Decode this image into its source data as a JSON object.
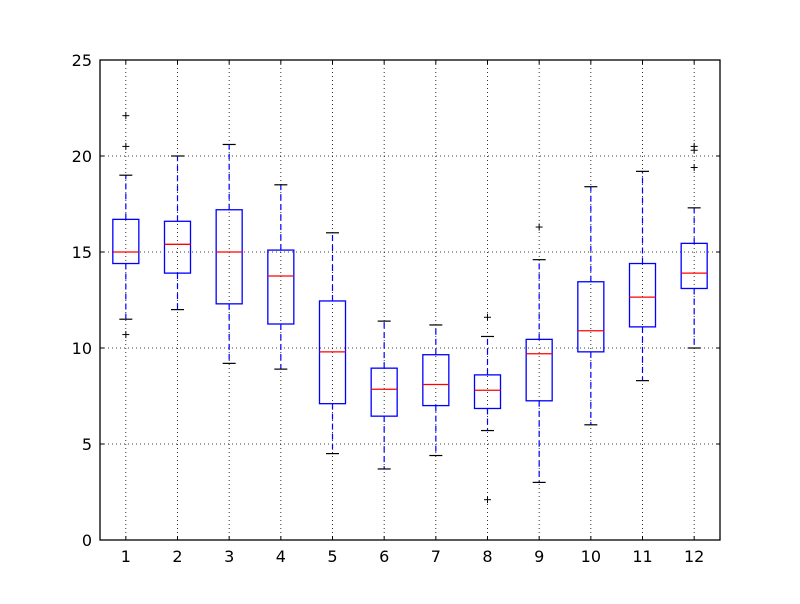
{
  "chart_data": {
    "type": "boxplot",
    "title": "",
    "xlabel": "",
    "ylabel": "",
    "categories": [
      "1",
      "2",
      "3",
      "4",
      "5",
      "6",
      "7",
      "8",
      "9",
      "10",
      "11",
      "12"
    ],
    "ylim": [
      0,
      25
    ],
    "xlim": [
      0.5,
      12.5
    ],
    "yticks": [
      0,
      5,
      10,
      15,
      20,
      25
    ],
    "xticks": [
      1,
      2,
      3,
      4,
      5,
      6,
      7,
      8,
      9,
      10,
      11,
      12
    ],
    "grid": true,
    "legend": null,
    "boxes": [
      {
        "label": "1",
        "whisker_low": 11.5,
        "q1": 14.4,
        "median": 15.0,
        "q3": 16.7,
        "whisker_high": 19.0,
        "outliers": [
          22.1,
          20.5,
          10.7
        ]
      },
      {
        "label": "2",
        "whisker_low": 12.0,
        "q1": 13.9,
        "median": 15.4,
        "q3": 16.6,
        "whisker_high": 20.0,
        "outliers": []
      },
      {
        "label": "3",
        "whisker_low": 9.2,
        "q1": 12.3,
        "median": 15.0,
        "q3": 17.2,
        "whisker_high": 20.6,
        "outliers": []
      },
      {
        "label": "4",
        "whisker_low": 8.9,
        "q1": 11.25,
        "median": 13.75,
        "q3": 15.1,
        "whisker_high": 18.5,
        "outliers": []
      },
      {
        "label": "5",
        "whisker_low": 4.5,
        "q1": 7.1,
        "median": 9.8,
        "q3": 12.45,
        "whisker_high": 16.0,
        "outliers": []
      },
      {
        "label": "6",
        "whisker_low": 3.7,
        "q1": 6.45,
        "median": 7.85,
        "q3": 8.95,
        "whisker_high": 11.4,
        "outliers": []
      },
      {
        "label": "7",
        "whisker_low": 4.4,
        "q1": 7.0,
        "median": 8.1,
        "q3": 9.65,
        "whisker_high": 11.2,
        "outliers": []
      },
      {
        "label": "8",
        "whisker_low": 5.7,
        "q1": 6.85,
        "median": 7.8,
        "q3": 8.6,
        "whisker_high": 10.6,
        "outliers": [
          11.6,
          2.1
        ]
      },
      {
        "label": "9",
        "whisker_low": 3.0,
        "q1": 7.25,
        "median": 9.7,
        "q3": 10.45,
        "whisker_high": 14.6,
        "outliers": [
          16.3
        ]
      },
      {
        "label": "10",
        "whisker_low": 6.0,
        "q1": 9.8,
        "median": 10.9,
        "q3": 13.45,
        "whisker_high": 18.4,
        "outliers": []
      },
      {
        "label": "11",
        "whisker_low": 8.3,
        "q1": 11.1,
        "median": 12.65,
        "q3": 14.4,
        "whisker_high": 19.2,
        "outliers": []
      },
      {
        "label": "12",
        "whisker_low": 10.0,
        "q1": 13.1,
        "median": 13.9,
        "q3": 15.45,
        "whisker_high": 17.3,
        "outliers": [
          20.5,
          20.3,
          19.4
        ]
      }
    ],
    "colors": {
      "box": "#0000ff",
      "whisker": "#0000ff",
      "median": "#ff0000",
      "cap": "#000000",
      "flier": "#000000",
      "grid": "#000000",
      "axes": "#000000"
    }
  }
}
